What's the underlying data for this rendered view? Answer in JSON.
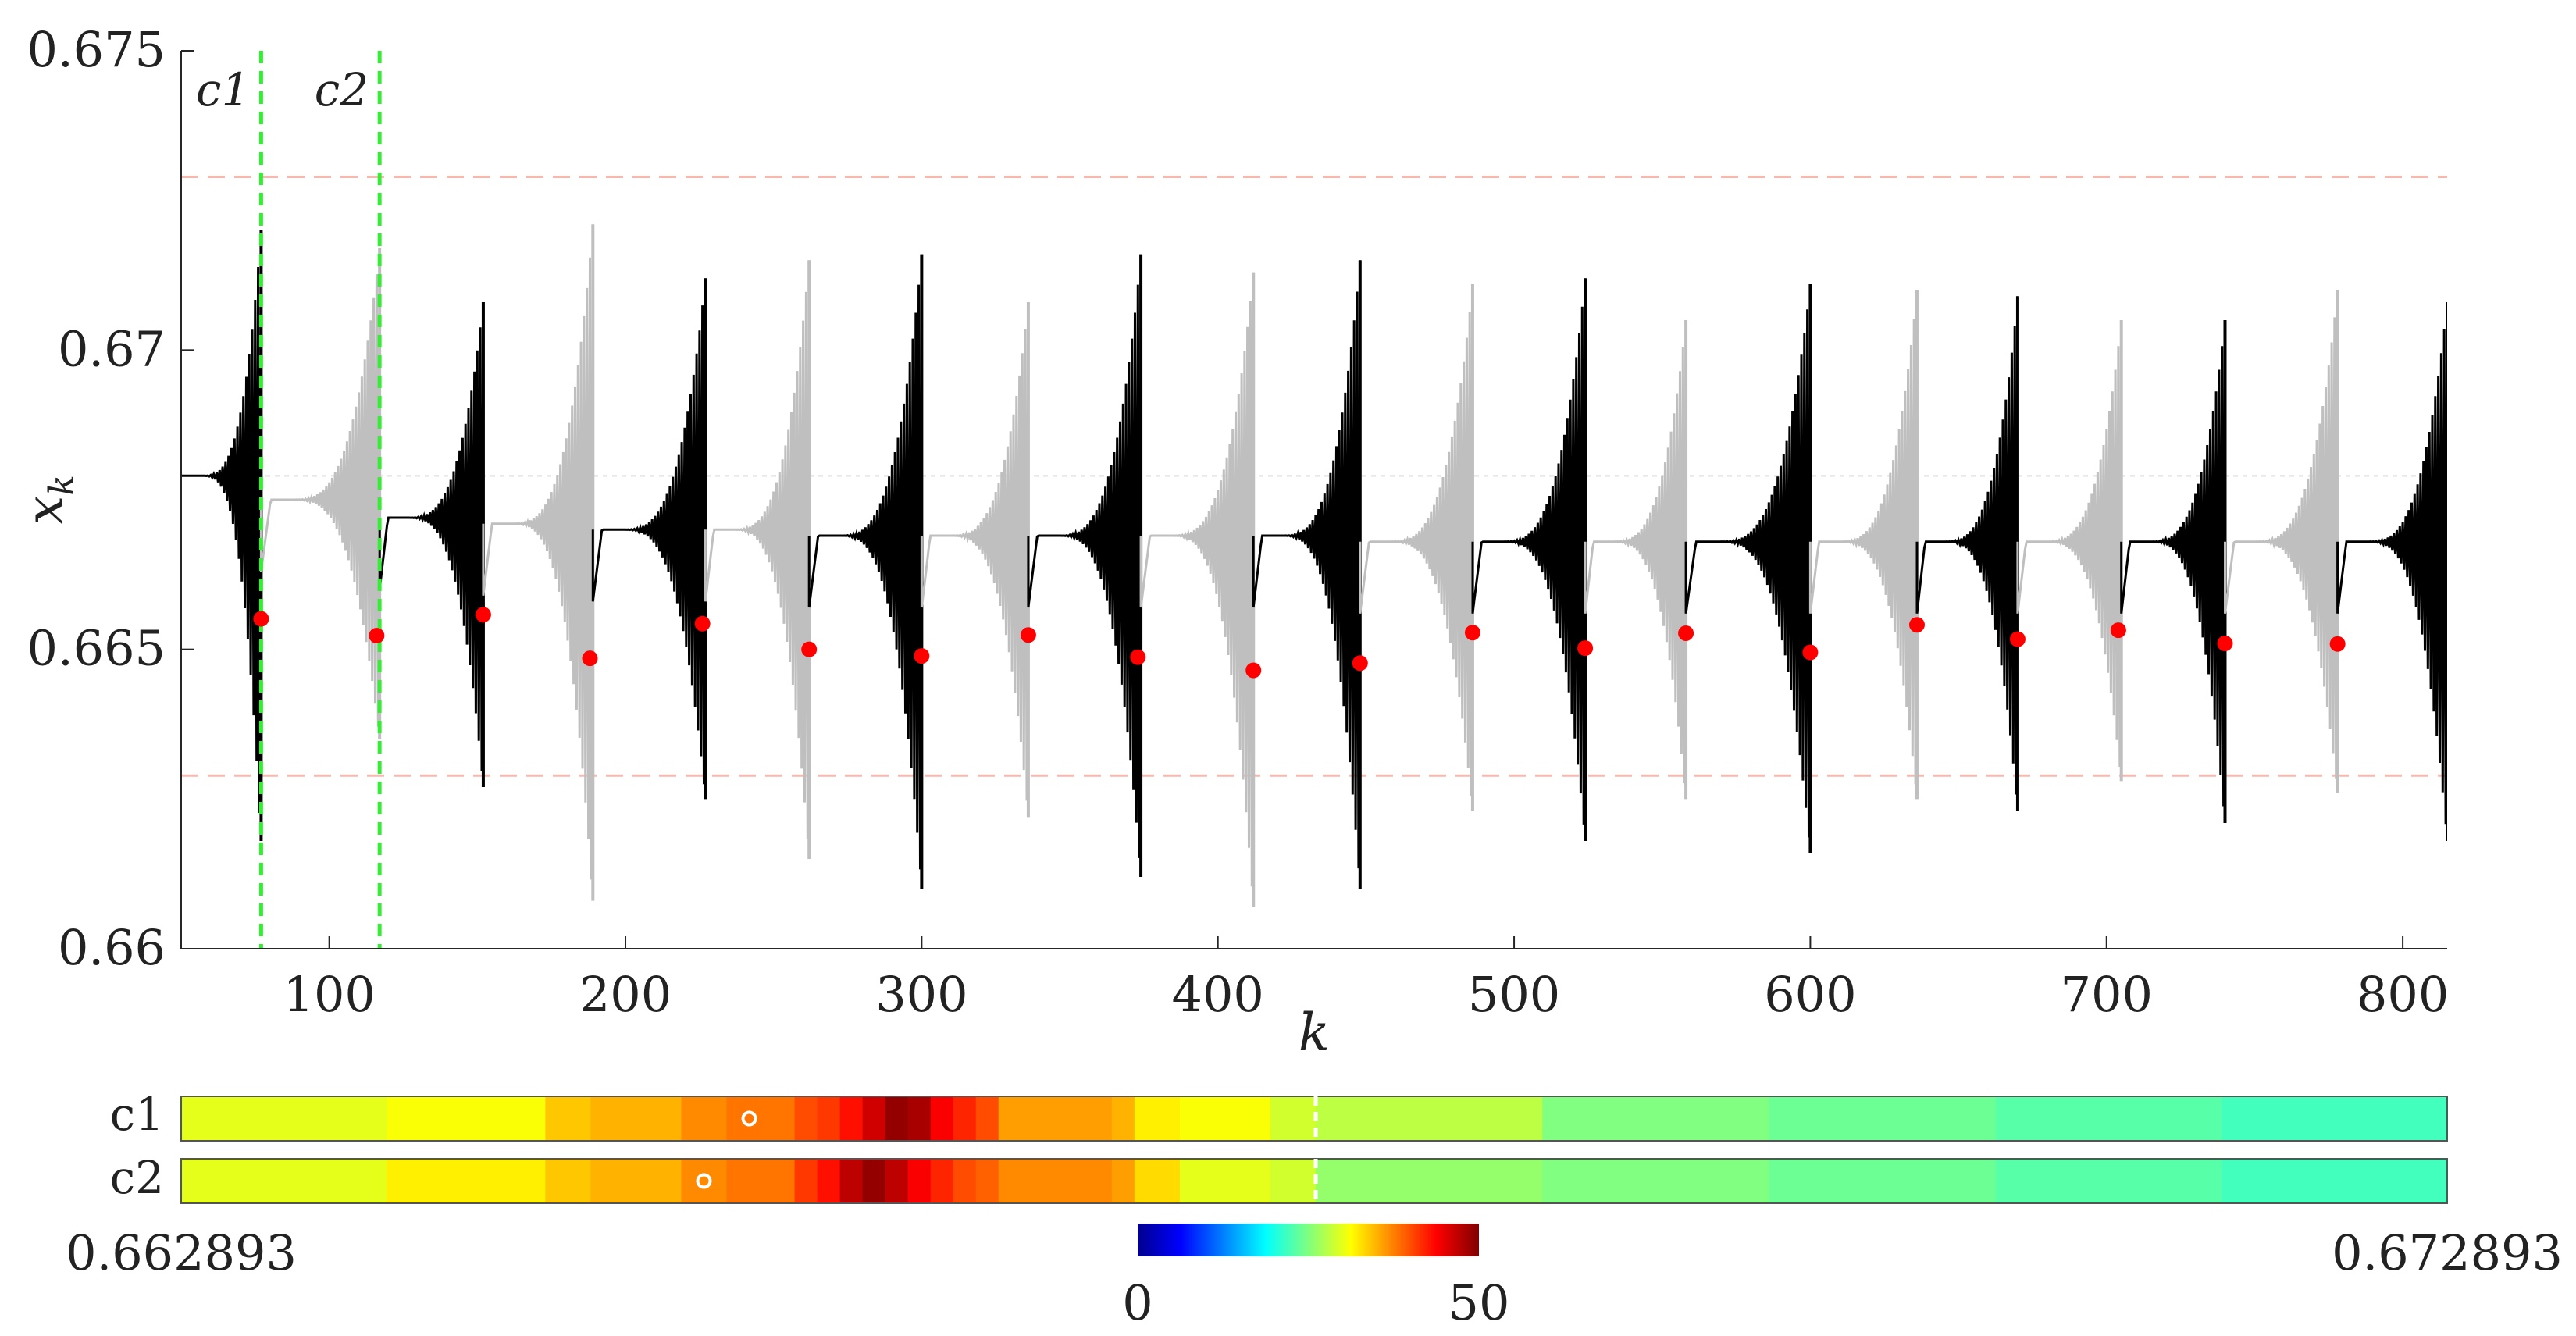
{
  "chart_data": [
    {
      "type": "line",
      "xlabel": "k",
      "ylabel": "x_k",
      "xlim": [
        50,
        815
      ],
      "ylim": [
        0.66,
        0.675
      ],
      "x_ticks": [
        "100",
        "200",
        "300",
        "400",
        "500",
        "600",
        "700",
        "800"
      ],
      "y_ticks": [
        "0.66",
        "0.665",
        "0.67",
        "0.675"
      ],
      "grid": false,
      "legend": "none",
      "colors": {
        "segment_dark": "#000000",
        "segment_light": "#bfbfbf",
        "markers": "#ff0000",
        "vertical_markers": "#33ee33",
        "threshold_lines": "#f5b9b0",
        "reference_line": "#d9d9d9"
      },
      "equilibrium": 0.6679,
      "threshold_lines": [
        0.672893,
        0.662893
      ],
      "vertical_markers": [
        {
          "label": "c1",
          "x": 77
        },
        {
          "label": "c2",
          "x": 117
        }
      ],
      "segments": [
        {
          "start": 50,
          "end": 77,
          "shade": "dark",
          "base": 0.6679,
          "peak_max": 0.672,
          "peak_min": 0.6618
        },
        {
          "start": 77,
          "end": 117,
          "shade": "light",
          "base": 0.6675,
          "peak_max": 0.6717,
          "peak_min": 0.6635
        },
        {
          "start": 117,
          "end": 152,
          "shade": "dark",
          "base": 0.6672,
          "peak_max": 0.6708,
          "peak_min": 0.6627
        },
        {
          "start": 152,
          "end": 189,
          "shade": "light",
          "base": 0.6671,
          "peak_max": 0.6721,
          "peak_min": 0.6608
        },
        {
          "start": 189,
          "end": 227,
          "shade": "dark",
          "base": 0.667,
          "peak_max": 0.6712,
          "peak_min": 0.6625
        },
        {
          "start": 227,
          "end": 262,
          "shade": "light",
          "base": 0.667,
          "peak_max": 0.6715,
          "peak_min": 0.6615
        },
        {
          "start": 262,
          "end": 300,
          "shade": "dark",
          "base": 0.6669,
          "peak_max": 0.6716,
          "peak_min": 0.661
        },
        {
          "start": 300,
          "end": 336,
          "shade": "light",
          "base": 0.6669,
          "peak_max": 0.6708,
          "peak_min": 0.6622
        },
        {
          "start": 336,
          "end": 374,
          "shade": "dark",
          "base": 0.6669,
          "peak_max": 0.6716,
          "peak_min": 0.6612
        },
        {
          "start": 374,
          "end": 412,
          "shade": "light",
          "base": 0.6669,
          "peak_max": 0.6713,
          "peak_min": 0.6607
        },
        {
          "start": 412,
          "end": 448,
          "shade": "dark",
          "base": 0.6669,
          "peak_max": 0.6715,
          "peak_min": 0.661
        },
        {
          "start": 448,
          "end": 486,
          "shade": "light",
          "base": 0.6668,
          "peak_max": 0.6711,
          "peak_min": 0.6623
        },
        {
          "start": 486,
          "end": 524,
          "shade": "dark",
          "base": 0.6668,
          "peak_max": 0.6712,
          "peak_min": 0.6618
        },
        {
          "start": 524,
          "end": 558,
          "shade": "light",
          "base": 0.6668,
          "peak_max": 0.6705,
          "peak_min": 0.6625
        },
        {
          "start": 558,
          "end": 600,
          "shade": "dark",
          "base": 0.6668,
          "peak_max": 0.6711,
          "peak_min": 0.6616
        },
        {
          "start": 600,
          "end": 636,
          "shade": "light",
          "base": 0.6668,
          "peak_max": 0.671,
          "peak_min": 0.6625
        },
        {
          "start": 636,
          "end": 670,
          "shade": "dark",
          "base": 0.6668,
          "peak_max": 0.6709,
          "peak_min": 0.6623
        },
        {
          "start": 670,
          "end": 705,
          "shade": "light",
          "base": 0.6668,
          "peak_max": 0.6705,
          "peak_min": 0.6628
        },
        {
          "start": 705,
          "end": 740,
          "shade": "dark",
          "base": 0.6668,
          "peak_max": 0.6705,
          "peak_min": 0.6621
        },
        {
          "start": 740,
          "end": 778,
          "shade": "light",
          "base": 0.6668,
          "peak_max": 0.671,
          "peak_min": 0.6626
        },
        {
          "start": 778,
          "end": 815,
          "shade": "dark",
          "base": 0.6668,
          "peak_max": 0.6708,
          "peak_min": 0.6618
        }
      ],
      "markers": [
        {
          "x": 77,
          "y": 0.66551
        },
        {
          "x": 116,
          "y": 0.66523
        },
        {
          "x": 152,
          "y": 0.66558
        },
        {
          "x": 188,
          "y": 0.66485
        },
        {
          "x": 226,
          "y": 0.66543
        },
        {
          "x": 262,
          "y": 0.665
        },
        {
          "x": 300,
          "y": 0.66489
        },
        {
          "x": 336,
          "y": 0.66524
        },
        {
          "x": 373,
          "y": 0.66487
        },
        {
          "x": 412,
          "y": 0.66465
        },
        {
          "x": 448,
          "y": 0.66477
        },
        {
          "x": 486,
          "y": 0.66528
        },
        {
          "x": 524,
          "y": 0.66502
        },
        {
          "x": 558,
          "y": 0.66527
        },
        {
          "x": 600,
          "y": 0.66495
        },
        {
          "x": 636,
          "y": 0.66541
        },
        {
          "x": 670,
          "y": 0.66517
        },
        {
          "x": 704,
          "y": 0.66532
        },
        {
          "x": 740,
          "y": 0.6651
        },
        {
          "x": 778,
          "y": 0.66509
        }
      ]
    },
    {
      "type": "heatmap",
      "rows": [
        "c1",
        "c2"
      ],
      "x_range": [
        "0.662893",
        "0.672893"
      ],
      "xlim": [
        0.662893,
        0.672893
      ],
      "colorbar": {
        "min": 0,
        "max": 50,
        "labels": [
          "0",
          "50"
        ],
        "colormap": "jet"
      },
      "band_edges": [
        0.662893,
        0.6629,
        0.6638,
        0.6645,
        0.6647,
        0.6651,
        0.6653,
        0.6656,
        0.6657,
        0.6658,
        0.6659,
        0.666,
        0.6661,
        0.6662,
        0.6663,
        0.6664,
        0.6665,
        0.667,
        0.6671,
        0.6673,
        0.6677,
        0.6679,
        0.6689,
        0.6699,
        0.6709,
        0.6719,
        0.672893
      ],
      "c1": [
        29,
        30,
        31,
        34,
        35,
        37,
        38,
        40,
        41,
        43,
        46,
        49,
        48,
        44,
        42,
        40,
        36,
        35,
        32,
        31,
        29,
        28,
        25,
        24,
        23,
        22
      ],
      "c2": [
        29,
        30,
        32,
        34,
        35,
        37,
        38,
        41,
        43,
        47,
        49,
        47,
        44,
        42,
        40,
        39,
        37,
        36,
        33,
        30,
        29,
        26,
        25,
        24,
        23,
        22
      ],
      "peaks": [
        {
          "row": "c1",
          "x": 0.6654
        },
        {
          "row": "c2",
          "x": 0.6652
        }
      ],
      "center_marker": 0.6679
    }
  ]
}
